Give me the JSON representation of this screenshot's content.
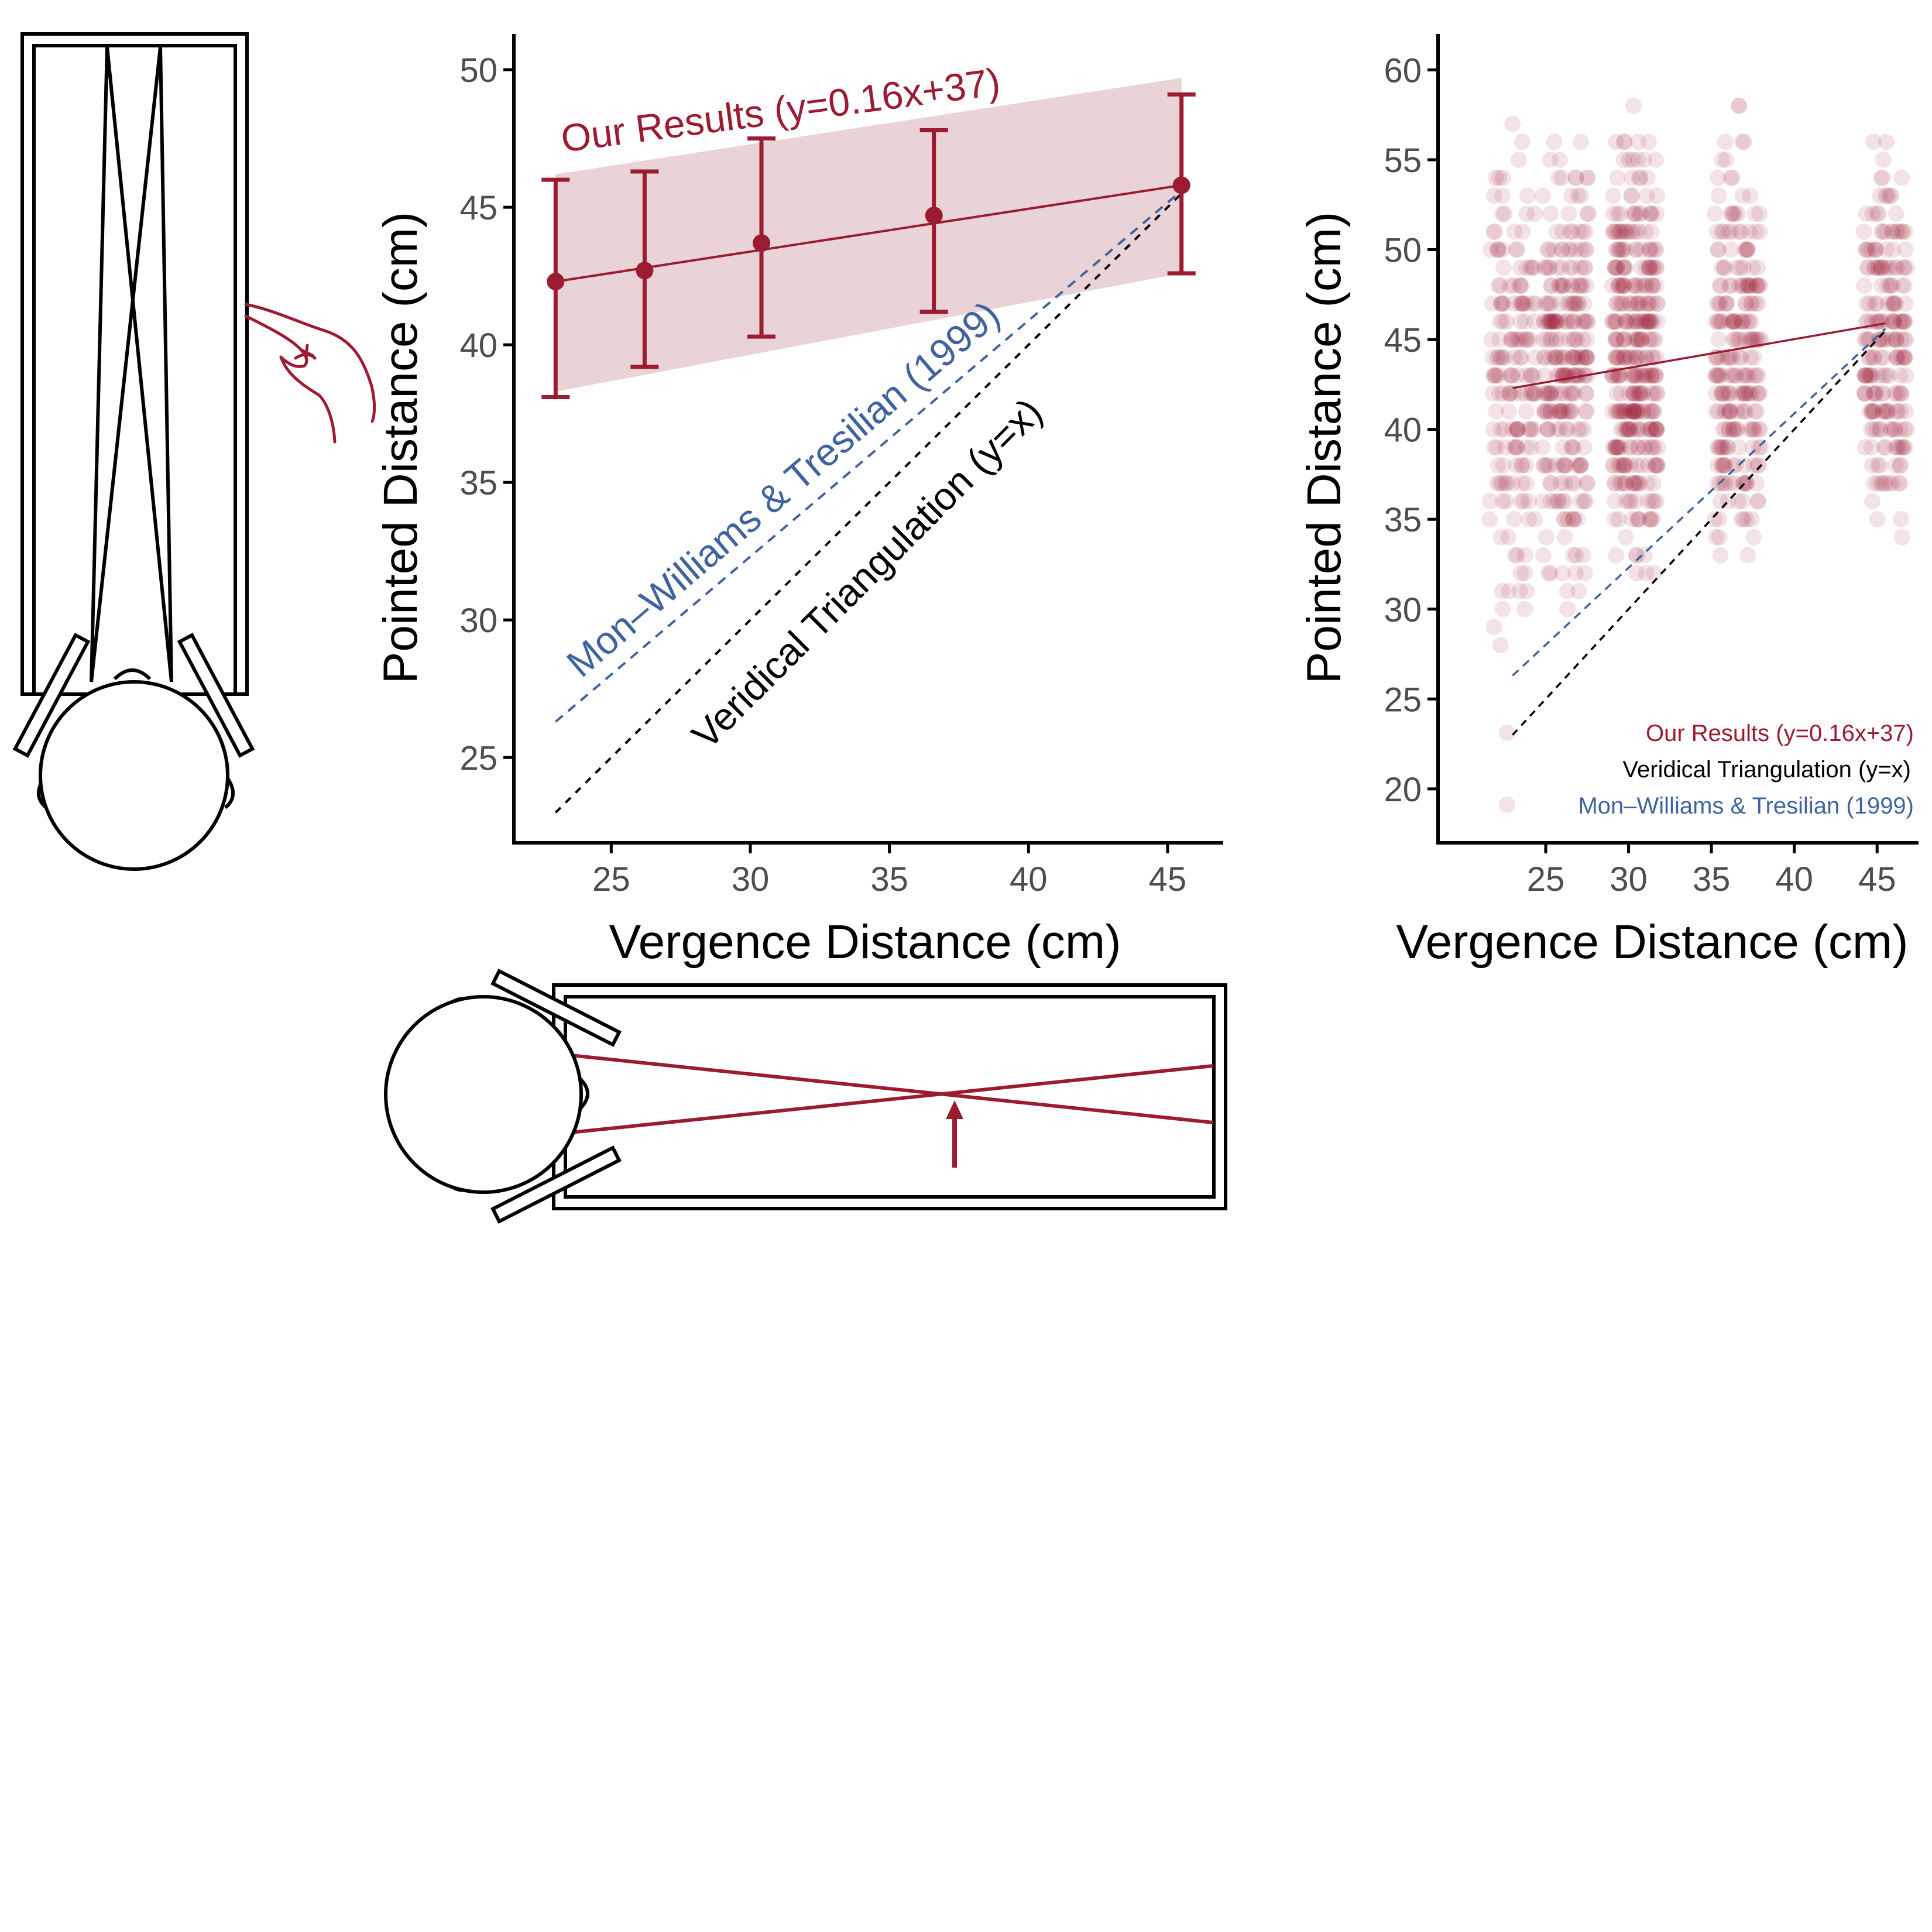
{
  "colors": {
    "ours": "#9B1B30",
    "ours_band": "#E9D3D6",
    "mon_williams": "#3F63A0",
    "veridical": "#000000",
    "tick_text": "#4d4d4d"
  },
  "icons": [
    "head-topview-icon",
    "pointing-hand-icon",
    "vergence-arrow-icon"
  ],
  "chart_data": [
    {
      "type": "line",
      "xlabel": "Vergence Distance (cm)",
      "ylabel": "Pointed Distance (cm)",
      "xlim": [
        21.5,
        47
      ],
      "ylim": [
        21.9,
        51.3
      ],
      "xticks": [
        25,
        30,
        35,
        40,
        45
      ],
      "yticks": [
        25,
        30,
        35,
        40,
        45,
        50
      ],
      "grid": false,
      "series": [
        {
          "name": "Our Results (y=0.16x+37)",
          "kind": "points_with_error_bars",
          "x": [
            23,
            26.2,
            30.4,
            36.6,
            45.5
          ],
          "y": [
            42.3,
            42.7,
            43.7,
            44.7,
            45.8
          ],
          "error_low": [
            38.1,
            39.2,
            40.3,
            41.2,
            42.6
          ],
          "error_high": [
            46.0,
            46.3,
            47.5,
            47.8,
            49.1
          ]
        },
        {
          "name": "Our Results (y=0.16x+37)",
          "kind": "band",
          "x": [
            23,
            45.5
          ],
          "lower": [
            38.3,
            42.6
          ],
          "upper": [
            46.2,
            49.7
          ]
        },
        {
          "name": "Mon–Williams & Tresilian (1999)",
          "kind": "dashed_line",
          "x": [
            23,
            45.5
          ],
          "y": [
            26.3,
            45.6
          ]
        },
        {
          "name": "Veridical Triangulation (y=x)",
          "kind": "dashed_line",
          "x": [
            23,
            45.5
          ],
          "y": [
            23,
            45.5
          ]
        }
      ],
      "annotations": [
        "Our Results (y=0.16x+37)",
        "Mon–Williams & Tresilian (1999)",
        "Veridical Triangulation (y=x)"
      ]
    },
    {
      "type": "scatter",
      "xlabel": "Vergence Distance (cm)",
      "ylabel": "Pointed Distance (cm)",
      "xlim": [
        18.5,
        47.5
      ],
      "ylim": [
        17,
        62
      ],
      "xticks": [
        25,
        30,
        35,
        40,
        45
      ],
      "yticks": [
        20,
        25,
        30,
        35,
        40,
        45,
        50,
        55,
        60
      ],
      "grid": false,
      "legend_position": "bottom-right",
      "point_groups": [
        {
          "x_center": 23,
          "x_jitter": 1.4,
          "y_min": 25,
          "y_max": 60,
          "count": 170
        },
        {
          "x_center": 26.2,
          "x_jitter": 1.4,
          "y_min": 28,
          "y_max": 60,
          "count": 260
        },
        {
          "x_center": 30.4,
          "x_jitter": 1.4,
          "y_min": 27,
          "y_max": 60,
          "count": 360
        },
        {
          "x_center": 36.6,
          "x_jitter": 1.4,
          "y_min": 28,
          "y_max": 60,
          "count": 240
        },
        {
          "x_center": 45.5,
          "x_jitter": 1.3,
          "y_min": 30,
          "y_max": 60,
          "count": 210
        }
      ],
      "series": [
        {
          "name": "Our Results (y=0.16x+37)",
          "x": [
            23,
            45.5
          ],
          "y": [
            42.3,
            45.9
          ]
        },
        {
          "name": "Veridical Triangulation (y=x)",
          "x": [
            23,
            45.5
          ],
          "y": [
            23,
            45.5
          ]
        },
        {
          "name": "Mon–Williams & Tresilian (1999)",
          "x": [
            23,
            45.5
          ],
          "y": [
            26.3,
            45.6
          ]
        }
      ],
      "legend": [
        "Our Results (y=0.16x+37)",
        "Veridical Triangulation (y=x)",
        "Mon–Williams & Tresilian (1999)"
      ]
    }
  ]
}
